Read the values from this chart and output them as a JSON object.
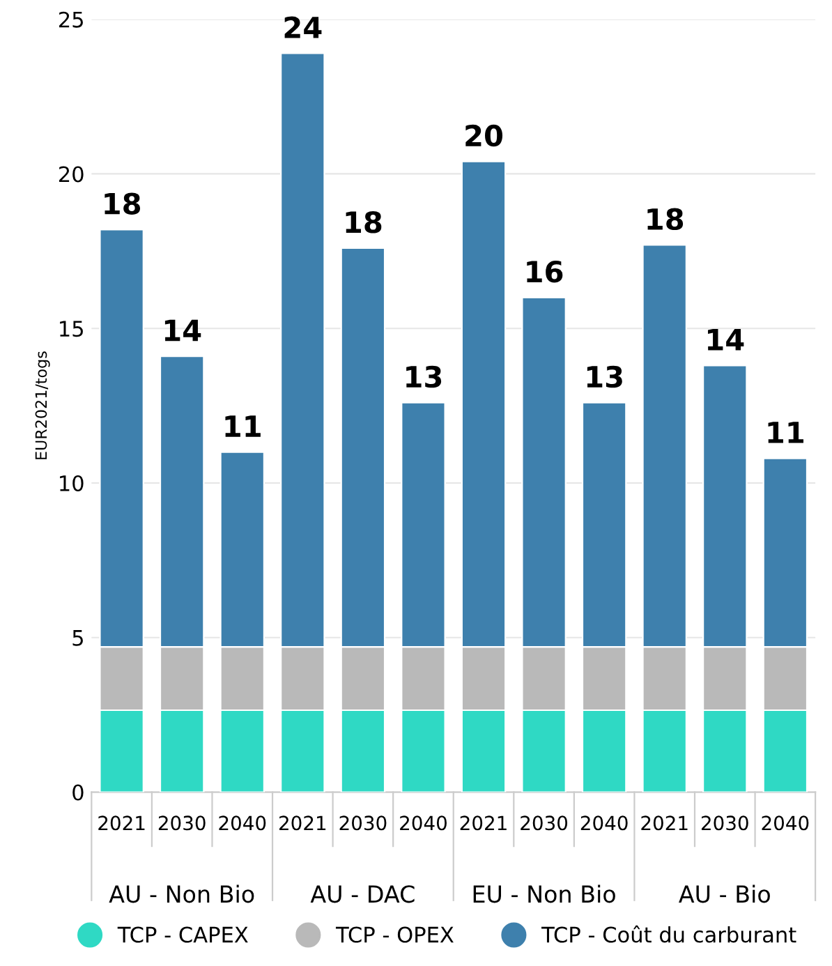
{
  "chart_data": {
    "type": "bar",
    "stacked": true,
    "ylabel": "EUR2021/togs",
    "categories": [
      "2021",
      "2030",
      "2040",
      "2021",
      "2030",
      "2040",
      "2021",
      "2030",
      "2040",
      "2021",
      "2030",
      "2040"
    ],
    "annotations": [
      "AU - Non Bio",
      "AU - DAC",
      "EU - Non Bio",
      "AU - Bio"
    ],
    "series": [
      {
        "name": "TCP - CAPEX",
        "color": "#2fd9c4",
        "values": [
          2.65,
          2.65,
          2.65,
          2.65,
          2.65,
          2.65,
          2.65,
          2.65,
          2.65,
          2.65,
          2.65,
          2.65
        ]
      },
      {
        "name": "TCP - OPEX",
        "color": "#b9b9b9",
        "values": [
          2.05,
          2.05,
          2.05,
          2.05,
          2.05,
          2.05,
          2.05,
          2.05,
          2.05,
          2.05,
          2.05,
          2.05
        ]
      },
      {
        "name": "TCP - Coût du carburant",
        "color": "#3e80ad",
        "values": [
          13.5,
          9.4,
          6.3,
          19.2,
          12.9,
          7.9,
          15.7,
          11.3,
          7.9,
          13.0,
          9.1,
          6.1
        ]
      }
    ],
    "totals": [
      "18",
      "14",
      "11",
      "24",
      "18",
      "13",
      "20",
      "16",
      "13",
      "18",
      "14",
      "11"
    ],
    "ylim": [
      0,
      25
    ],
    "yticks": [
      0,
      5,
      10,
      15,
      20,
      25
    ],
    "grid": "y",
    "legend": "bottom"
  }
}
